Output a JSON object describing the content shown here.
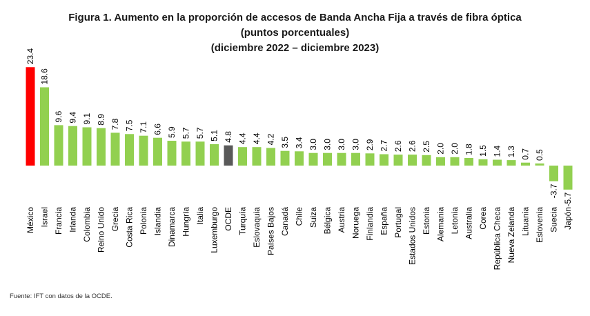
{
  "title": "Figura 1. Aumento en la proporción de accesos de Banda Ancha Fija a través de fibra óptica",
  "subtitle": "(puntos porcentuales)",
  "period": "(diciembre 2022 – diciembre 2023)",
  "source": "Fuente: IFT con datos de la OCDE.",
  "colors": {
    "default": "#92D050",
    "highlight": "#FF0000",
    "oecd": "#595959"
  },
  "chart_data": {
    "type": "bar",
    "title": "Figura 1. Aumento en la proporción de accesos de Banda Ancha Fija a través de fibra óptica",
    "subtitle": "(puntos porcentuales)",
    "xlabel": "",
    "ylabel": "",
    "grid": false,
    "highlight": {
      "México": "#FF0000",
      "OCDE": "#595959"
    },
    "categories": [
      "México",
      "Israel",
      "Francia",
      "Irlanda",
      "Colombia",
      "Reino Unido",
      "Grecia",
      "Costa Rica",
      "Polonia",
      "Islandia",
      "Dinamarca",
      "Hungría",
      "Italia",
      "Luxemburgo",
      "OCDE",
      "Turquía",
      "Eslovaquia",
      "Países Bajos",
      "Canadá",
      "Chile",
      "Suiza",
      "Bélgica",
      "Austria",
      "Noruega",
      "Finlandia",
      "España",
      "Portugal",
      "Estados Unidos",
      "Estonia",
      "Alemania",
      "Letonia",
      "Australia",
      "Corea",
      "República Checa",
      "Nueva Zelanda",
      "Lituania",
      "Eslovenia",
      "Suecia",
      "Japón"
    ],
    "values": [
      23.4,
      18.6,
      9.6,
      9.4,
      9.1,
      8.9,
      7.8,
      7.5,
      7.1,
      6.6,
      5.9,
      5.7,
      5.7,
      5.1,
      4.8,
      4.4,
      4.4,
      4.2,
      3.5,
      3.4,
      3.0,
      3.0,
      3.0,
      3.0,
      2.9,
      2.7,
      2.6,
      2.6,
      2.5,
      2.0,
      2.0,
      1.8,
      1.5,
      1.4,
      1.3,
      0.7,
      0.5,
      -3.7,
      -5.7
    ],
    "labels": [
      "23.4",
      "18.6",
      "9.6",
      "9.4",
      "9.1",
      "8.9",
      "7.8",
      "7.5",
      "7.1",
      "6.6",
      "5.9",
      "5.7",
      "5.7",
      "5.1",
      "4.8",
      "4.4",
      "4.4",
      "4.2",
      "3.5",
      "3.4",
      "3.0",
      "3.0",
      "3.0",
      "3.0",
      "2.9",
      "2.7",
      "2.6",
      "2.6",
      "2.5",
      "2.0",
      "2.0",
      "1.8",
      "1.5",
      "1.4",
      "1.3",
      "0.7",
      "0.5",
      "-3.7",
      "-5.7"
    ]
  }
}
